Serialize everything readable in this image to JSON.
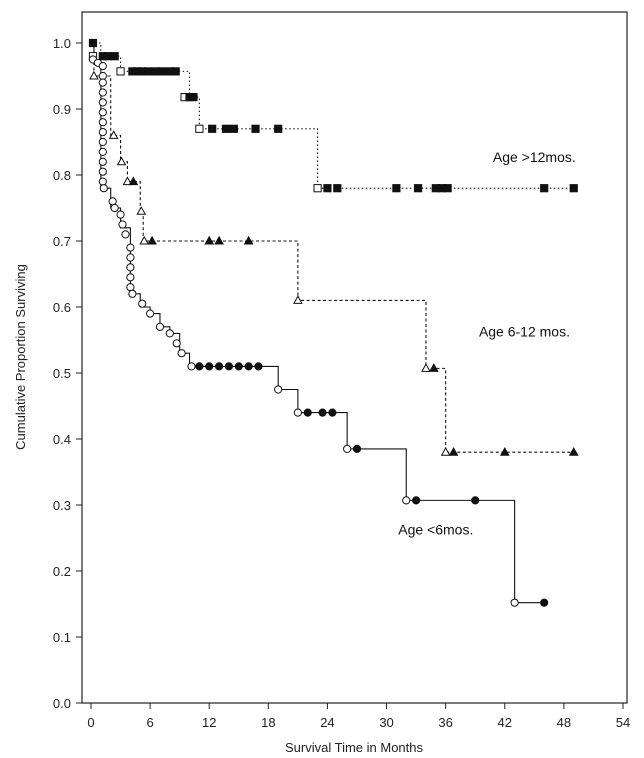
{
  "chart_data": {
    "type": "line",
    "subtype": "kaplan-meier-step",
    "title": "",
    "xlabel": "Survival Time in Months",
    "ylabel": "Cumulative Proportion Surviving",
    "xlim": [
      0,
      54
    ],
    "ylim": [
      0,
      1.0
    ],
    "xticks": [
      "0",
      "6",
      "12",
      "18",
      "24",
      "30",
      "36",
      "42",
      "48",
      "54"
    ],
    "yticks": [
      "0.0",
      "0.1",
      "0.2",
      "0.3",
      "0.4",
      "0.5",
      "0.6",
      "0.7",
      "0.8",
      "0.9",
      "1.0"
    ],
    "xtick_values": [
      0,
      6,
      12,
      18,
      24,
      30,
      36,
      42,
      48,
      54
    ],
    "ytick_values": [
      0,
      0.1,
      0.2,
      0.3,
      0.4,
      0.5,
      0.6,
      0.7,
      0.8,
      0.9,
      1.0
    ],
    "grid": false,
    "legend": "none",
    "series": [
      {
        "label": "Age >12mos.",
        "color": "#111111",
        "line_style": "dotted",
        "event_marker": "open-square",
        "censor_marker": "filled-square",
        "steps": [
          [
            0,
            1.0
          ],
          [
            1.0,
            0.98
          ],
          [
            3.0,
            0.957
          ],
          [
            10.0,
            0.918
          ],
          [
            11.0,
            0.87
          ],
          [
            23.0,
            0.78
          ]
        ],
        "events": [
          [
            0.2,
            0.98
          ],
          [
            3.0,
            0.957
          ],
          [
            9.5,
            0.918
          ],
          [
            11.0,
            0.87
          ],
          [
            23.0,
            0.78
          ]
        ],
        "censored": [
          [
            0.2,
            1.0
          ],
          [
            1.2,
            0.98
          ],
          [
            1.7,
            0.98
          ],
          [
            2.4,
            0.98
          ],
          [
            4.2,
            0.957
          ],
          [
            4.7,
            0.957
          ],
          [
            5.2,
            0.957
          ],
          [
            5.8,
            0.957
          ],
          [
            6.5,
            0.957
          ],
          [
            7.2,
            0.957
          ],
          [
            8.0,
            0.957
          ],
          [
            8.6,
            0.957
          ],
          [
            10.0,
            0.918
          ],
          [
            10.4,
            0.918
          ],
          [
            12.3,
            0.87
          ],
          [
            13.7,
            0.87
          ],
          [
            14.5,
            0.87
          ],
          [
            16.7,
            0.87
          ],
          [
            19.0,
            0.87
          ],
          [
            24.0,
            0.78
          ],
          [
            25.0,
            0.78
          ],
          [
            31.0,
            0.78
          ],
          [
            33.2,
            0.78
          ],
          [
            35.0,
            0.78
          ],
          [
            35.6,
            0.78
          ],
          [
            36.2,
            0.78
          ],
          [
            46.0,
            0.78
          ],
          [
            49.0,
            0.78
          ]
        ]
      },
      {
        "label": "Age 6-12 mos.",
        "color": "#111111",
        "line_style": "dashed",
        "event_marker": "open-triangle",
        "censor_marker": "filled-triangle",
        "steps": [
          [
            0,
            1.0
          ],
          [
            0.3,
            0.95
          ],
          [
            2.0,
            0.86
          ],
          [
            3.0,
            0.82
          ],
          [
            3.7,
            0.79
          ],
          [
            5.0,
            0.745
          ],
          [
            5.3,
            0.7
          ],
          [
            21.0,
            0.61
          ],
          [
            34.0,
            0.507
          ],
          [
            36.0,
            0.38
          ]
        ],
        "events": [
          [
            0.3,
            0.95
          ],
          [
            2.3,
            0.86
          ],
          [
            3.1,
            0.82
          ],
          [
            3.7,
            0.79
          ],
          [
            5.1,
            0.745
          ],
          [
            5.4,
            0.7
          ],
          [
            21.0,
            0.61
          ],
          [
            34.0,
            0.507
          ],
          [
            36.0,
            0.38
          ]
        ],
        "censored": [
          [
            4.3,
            0.79
          ],
          [
            6.2,
            0.7
          ],
          [
            12.0,
            0.7
          ],
          [
            13.0,
            0.7
          ],
          [
            16.0,
            0.7
          ],
          [
            34.8,
            0.507
          ],
          [
            36.8,
            0.38
          ],
          [
            42.0,
            0.38
          ],
          [
            49.0,
            0.38
          ]
        ]
      },
      {
        "label": "Age <6mos.",
        "color": "#111111",
        "line_style": "solid",
        "event_marker": "open-circle",
        "censor_marker": "filled-circle",
        "steps": [
          [
            0,
            1.0
          ],
          [
            0.3,
            0.97
          ],
          [
            1.0,
            0.78
          ],
          [
            2.0,
            0.75
          ],
          [
            3.0,
            0.72
          ],
          [
            4.0,
            0.62
          ],
          [
            5.0,
            0.6
          ],
          [
            6.0,
            0.59
          ],
          [
            7.0,
            0.57
          ],
          [
            8.0,
            0.56
          ],
          [
            9.0,
            0.53
          ],
          [
            10.0,
            0.51
          ],
          [
            19.0,
            0.475
          ],
          [
            21.0,
            0.44
          ],
          [
            26.0,
            0.385
          ],
          [
            32.0,
            0.307
          ],
          [
            43.0,
            0.152
          ]
        ],
        "events": [
          [
            0.2,
            0.975
          ],
          [
            0.7,
            0.97
          ],
          [
            1.2,
            0.965
          ],
          [
            1.2,
            0.95
          ],
          [
            1.2,
            0.94
          ],
          [
            1.2,
            0.925
          ],
          [
            1.2,
            0.91
          ],
          [
            1.2,
            0.895
          ],
          [
            1.2,
            0.88
          ],
          [
            1.2,
            0.865
          ],
          [
            1.2,
            0.85
          ],
          [
            1.2,
            0.835
          ],
          [
            1.2,
            0.82
          ],
          [
            1.2,
            0.805
          ],
          [
            1.2,
            0.79
          ],
          [
            1.3,
            0.78
          ],
          [
            2.2,
            0.76
          ],
          [
            2.4,
            0.75
          ],
          [
            3.0,
            0.74
          ],
          [
            3.2,
            0.725
          ],
          [
            3.5,
            0.71
          ],
          [
            4.0,
            0.69
          ],
          [
            4.0,
            0.675
          ],
          [
            4.0,
            0.66
          ],
          [
            4.0,
            0.645
          ],
          [
            4.0,
            0.63
          ],
          [
            4.2,
            0.62
          ],
          [
            5.2,
            0.605
          ],
          [
            6.0,
            0.59
          ],
          [
            7.0,
            0.57
          ],
          [
            8.0,
            0.56
          ],
          [
            8.7,
            0.545
          ],
          [
            9.2,
            0.53
          ],
          [
            10.2,
            0.51
          ],
          [
            19.0,
            0.475
          ],
          [
            21.0,
            0.44
          ],
          [
            26.0,
            0.385
          ],
          [
            32.0,
            0.307
          ],
          [
            43.0,
            0.152
          ]
        ],
        "censored": [
          [
            11.0,
            0.51
          ],
          [
            12.0,
            0.51
          ],
          [
            13.0,
            0.51
          ],
          [
            14.0,
            0.51
          ],
          [
            15.0,
            0.51
          ],
          [
            16.0,
            0.51
          ],
          [
            17.0,
            0.51
          ],
          [
            22.0,
            0.44
          ],
          [
            23.5,
            0.44
          ],
          [
            24.5,
            0.44
          ],
          [
            27.0,
            0.385
          ],
          [
            33.0,
            0.307
          ],
          [
            39.0,
            0.307
          ],
          [
            46.0,
            0.152
          ]
        ]
      }
    ],
    "annotations": [
      {
        "text": "Age >12mos.",
        "x": 45,
        "y": 0.82
      },
      {
        "text": "Age 6-12 mos.",
        "x": 44,
        "y": 0.555
      },
      {
        "text": "Age <6mos.",
        "x": 35,
        "y": 0.255
      }
    ]
  }
}
